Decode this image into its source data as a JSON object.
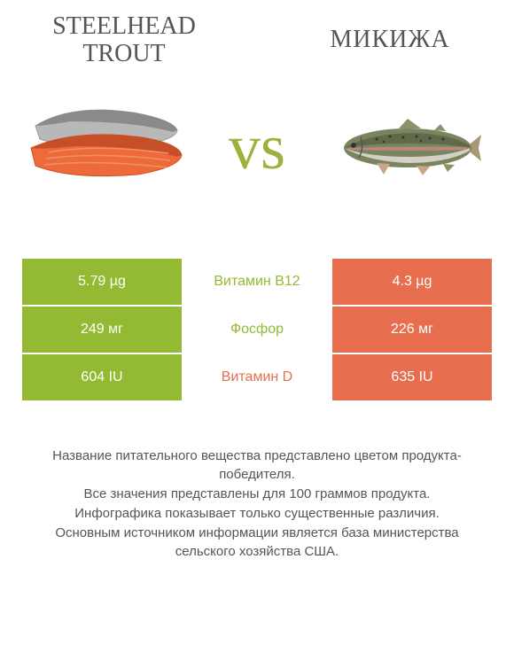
{
  "left_title": "STEELHEAD TROUT",
  "right_title": "МИКИЖА",
  "vs_label": "vs",
  "colors": {
    "green": "#94b932",
    "orange": "#e76f4f",
    "mid_text_green": "#94b932",
    "mid_text_orange": "#e76f4f",
    "title": "#555555"
  },
  "rows": [
    {
      "left_val": "5.79 µg",
      "mid": "Витамин B12",
      "right_val": "4.3 µg",
      "left_bg": "green",
      "right_bg": "orange",
      "mid_color": "green"
    },
    {
      "left_val": "249 мг",
      "mid": "Фосфор",
      "right_val": "226 мг",
      "left_bg": "green",
      "right_bg": "orange",
      "mid_color": "green"
    },
    {
      "left_val": "604 IU",
      "mid": "Витамин D",
      "right_val": "635 IU",
      "left_bg": "green",
      "right_bg": "orange",
      "mid_color": "orange"
    }
  ],
  "footer": "Название питательного вещества представлено цветом продукта-победителя.\nВсе значения представлены для 100 граммов продукта.\nИнфографика показывает только существенные различия.\nОсновным источником информации является база министерства сельского хозяйства США."
}
